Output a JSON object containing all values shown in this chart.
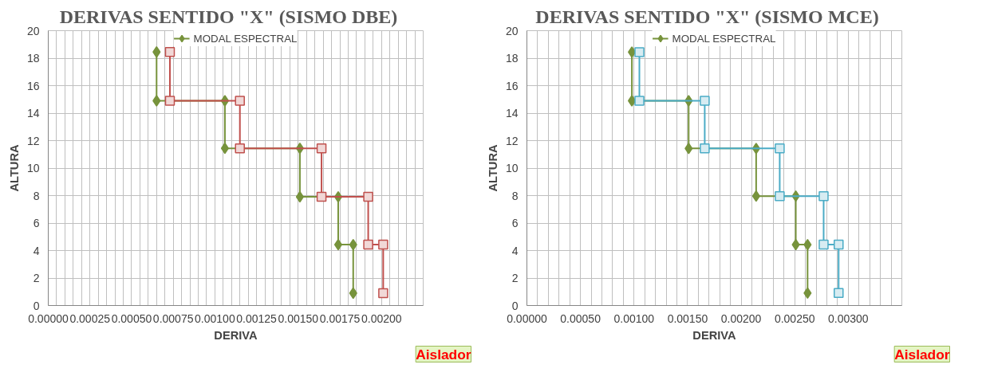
{
  "chart_data": [
    {
      "type": "line",
      "title": "DERIVAS  SENTIDO  \"X\" (SISMO  DBE)",
      "xlabel": "DERIVA",
      "ylabel": "ALTURA",
      "series": [
        {
          "name": "MODAL ESPECTRAL",
          "color": "#77933c",
          "marker": "diamond",
          "x": [
            0.00065,
            0.00065,
            0.00106,
            0.00106,
            0.00151,
            0.00151,
            0.00174,
            0.00174,
            0.00183,
            0.00183
          ],
          "values": [
            18.45,
            14.9,
            14.9,
            11.44,
            11.44,
            7.91,
            7.91,
            4.43,
            4.43,
            0.9
          ]
        },
        {
          "color": "#c0504d",
          "marker": "square",
          "x": [
            0.00073,
            0.00073,
            0.00115,
            0.00115,
            0.00164,
            0.00164,
            0.00192,
            0.00192,
            0.00201,
            0.00201
          ],
          "values": [
            18.45,
            14.9,
            14.9,
            11.44,
            11.44,
            7.91,
            7.91,
            4.43,
            4.43,
            0.9
          ]
        }
      ],
      "xlim": [
        0,
        0.00225
      ],
      "ylim": [
        0,
        20
      ],
      "xticks": [
        {
          "value": 0,
          "label": "0.00000"
        },
        {
          "value": 5e-05,
          "label": null
        },
        {
          "value": 0.0001,
          "label": null
        },
        {
          "value": 0.00015,
          "label": null
        },
        {
          "value": 0.0002,
          "label": null
        },
        {
          "value": 0.00025,
          "label": "0.00025"
        },
        {
          "value": 0.0003,
          "label": null
        },
        {
          "value": 0.00035,
          "label": null
        },
        {
          "value": 0.0004,
          "label": null
        },
        {
          "value": 0.00045,
          "label": null
        },
        {
          "value": 0.0005,
          "label": "0.00050"
        },
        {
          "value": 0.00055,
          "label": null
        },
        {
          "value": 0.0006,
          "label": null
        },
        {
          "value": 0.00065,
          "label": null
        },
        {
          "value": 0.0007,
          "label": null
        },
        {
          "value": 0.00075,
          "label": "0.00075"
        },
        {
          "value": 0.0008,
          "label": null
        },
        {
          "value": 0.00085,
          "label": null
        },
        {
          "value": 0.0009,
          "label": null
        },
        {
          "value": 0.00095,
          "label": null
        },
        {
          "value": 0.001,
          "label": "0.00100"
        },
        {
          "value": 0.00105,
          "label": null
        },
        {
          "value": 0.0011,
          "label": null
        },
        {
          "value": 0.00115,
          "label": null
        },
        {
          "value": 0.0012,
          "label": null
        },
        {
          "value": 0.00125,
          "label": "0.00125"
        },
        {
          "value": 0.0013,
          "label": null
        },
        {
          "value": 0.00135,
          "label": null
        },
        {
          "value": 0.0014,
          "label": null
        },
        {
          "value": 0.00145,
          "label": null
        },
        {
          "value": 0.0015,
          "label": "0.00150"
        },
        {
          "value": 0.00155,
          "label": null
        },
        {
          "value": 0.0016,
          "label": null
        },
        {
          "value": 0.00165,
          "label": null
        },
        {
          "value": 0.0017,
          "label": null
        },
        {
          "value": 0.00175,
          "label": "0.00175"
        },
        {
          "value": 0.0018,
          "label": null
        },
        {
          "value": 0.00185,
          "label": null
        },
        {
          "value": 0.0019,
          "label": null
        },
        {
          "value": 0.00195,
          "label": null
        },
        {
          "value": 0.002,
          "label": "0.00200"
        },
        {
          "value": 0.00205,
          "label": null
        },
        {
          "value": 0.0021,
          "label": null
        },
        {
          "value": 0.00215,
          "label": null
        },
        {
          "value": 0.0022,
          "label": null
        },
        {
          "value": 0.00225,
          "label": null
        }
      ],
      "yticks": [
        0,
        2,
        4,
        6,
        8,
        10,
        12,
        14,
        16,
        18,
        20
      ],
      "grid": true,
      "legend": "top",
      "line_style": "solid",
      "annotations": [
        "Aislador"
      ]
    },
    {
      "type": "line",
      "title": "DERIVAS  SENTIDO  \"X\" (SISMO  MCE)",
      "xlabel": "DERIVA",
      "ylabel": "ALTURA",
      "series": [
        {
          "name": "MODAL ESPECTRAL",
          "color": "#77933c",
          "marker": "diamond",
          "x": [
            0.00098,
            0.00098,
            0.00151,
            0.00151,
            0.00214,
            0.00214,
            0.00251,
            0.00251,
            0.00262,
            0.00262
          ],
          "values": [
            18.44,
            14.9,
            14.9,
            11.43,
            11.43,
            7.96,
            7.96,
            4.43,
            4.43,
            0.91
          ]
        },
        {
          "color": "#4bacc6",
          "marker": "square",
          "x": [
            0.00105,
            0.00105,
            0.00166,
            0.00166,
            0.00236,
            0.00236,
            0.00277,
            0.00277,
            0.00291,
            0.00291
          ],
          "values": [
            18.44,
            14.9,
            14.9,
            11.43,
            11.43,
            7.96,
            7.96,
            4.43,
            4.43,
            0.91
          ]
        }
      ],
      "xlim": [
        0,
        0.0035
      ],
      "ylim": [
        0,
        20
      ],
      "xticks": [
        {
          "value": 0,
          "label": "0.00000"
        },
        {
          "value": 0.0001,
          "label": null
        },
        {
          "value": 0.0002,
          "label": null
        },
        {
          "value": 0.0003,
          "label": null
        },
        {
          "value": 0.0004,
          "label": null
        },
        {
          "value": 0.0005,
          "label": "0.00050"
        },
        {
          "value": 0.0006,
          "label": null
        },
        {
          "value": 0.0007,
          "label": null
        },
        {
          "value": 0.0008,
          "label": null
        },
        {
          "value": 0.0009,
          "label": null
        },
        {
          "value": 0.001,
          "label": "0.00100"
        },
        {
          "value": 0.0011,
          "label": null
        },
        {
          "value": 0.0012,
          "label": null
        },
        {
          "value": 0.0013,
          "label": null
        },
        {
          "value": 0.0014,
          "label": null
        },
        {
          "value": 0.0015,
          "label": "0.00150"
        },
        {
          "value": 0.0016,
          "label": null
        },
        {
          "value": 0.0017,
          "label": null
        },
        {
          "value": 0.0018,
          "label": null
        },
        {
          "value": 0.0019,
          "label": null
        },
        {
          "value": 0.002,
          "label": "0.00200"
        },
        {
          "value": 0.0021,
          "label": null
        },
        {
          "value": 0.0022,
          "label": null
        },
        {
          "value": 0.0023,
          "label": null
        },
        {
          "value": 0.0024,
          "label": null
        },
        {
          "value": 0.0025,
          "label": "0.00250"
        },
        {
          "value": 0.0026,
          "label": null
        },
        {
          "value": 0.0027,
          "label": null
        },
        {
          "value": 0.0028,
          "label": null
        },
        {
          "value": 0.0029,
          "label": null
        },
        {
          "value": 0.003,
          "label": "0.00300"
        },
        {
          "value": 0.0031,
          "label": null
        },
        {
          "value": 0.0032,
          "label": null
        },
        {
          "value": 0.0033,
          "label": null
        },
        {
          "value": 0.0034,
          "label": null
        },
        {
          "value": 0.0035,
          "label": null
        }
      ],
      "yticks": [
        0,
        2,
        4,
        6,
        8,
        10,
        12,
        14,
        16,
        18,
        20
      ],
      "grid": true,
      "legend": "top",
      "line_style": "solid",
      "annotations": [
        "Aislador"
      ]
    }
  ]
}
